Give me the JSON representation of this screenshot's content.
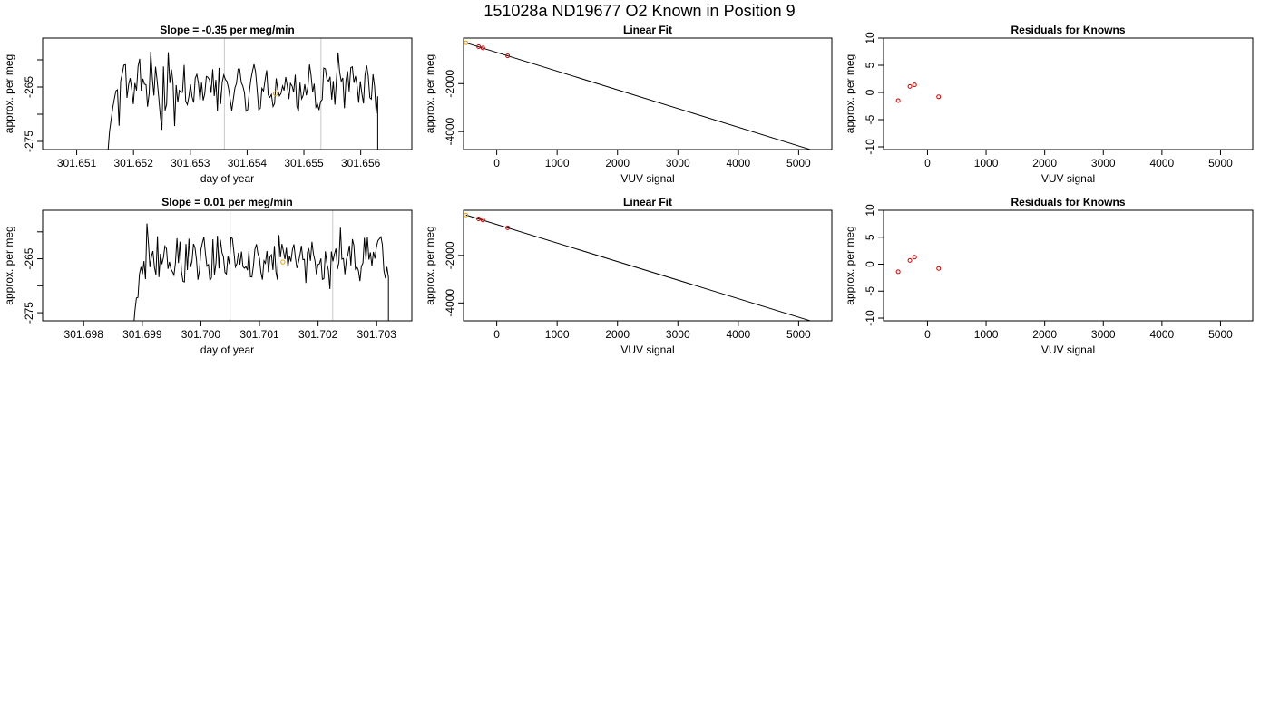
{
  "page_title": "151028a     ND19677   O2 Known in Position  9",
  "chart_data": [
    {
      "id": "p1",
      "type": "line",
      "title": "Slope =  -0.35  per meg/min",
      "xlabel": "day of year",
      "ylabel": "approx. per meg",
      "xlim": [
        301.6504,
        301.6569
      ],
      "ylim": [
        -276.5,
        -256
      ],
      "xticks": [
        301.651,
        301.652,
        301.653,
        301.654,
        301.655,
        301.656
      ],
      "xtick_labels": [
        "301.651",
        "301.652",
        "301.653",
        "301.654",
        "301.655",
        "301.656"
      ],
      "yticks": [
        -275,
        -270,
        -265,
        -260
      ],
      "ytick_labels": [
        "-275",
        "",
        "-265",
        ""
      ],
      "vlines": [
        301.6536,
        301.6553
      ],
      "mean_marker": {
        "x": 301.6545,
        "y": -266.2
      },
      "series": [
        {
          "trace": true,
          "x_start": 301.65155,
          "x_end": 301.6563,
          "y_start": -275.5,
          "base": -265,
          "amp": 3.2,
          "y_end_drop": -277
        }
      ]
    },
    {
      "id": "p2",
      "type": "scatter",
      "title": "Linear Fit",
      "xlabel": "VUV signal",
      "ylabel": "approx. per meg",
      "xlim": [
        -550,
        5550
      ],
      "ylim": [
        -4750,
        -100
      ],
      "xticks": [
        0,
        1000,
        2000,
        3000,
        4000,
        5000
      ],
      "xtick_labels": [
        "0",
        "1000",
        "2000",
        "3000",
        "4000",
        "5000"
      ],
      "yticks": [
        -4000,
        -2000
      ],
      "ytick_labels": [
        "-4000",
        "-2000"
      ],
      "fit_line": {
        "x": [
          -510,
          5270
        ],
        "y": [
          -300,
          -4810
        ]
      },
      "points": [
        {
          "x": -510,
          "y": -300,
          "color": "#e69f00"
        },
        {
          "x": -300,
          "y": -460,
          "color": "#d00000"
        },
        {
          "x": -230,
          "y": -510,
          "color": "#d00000"
        },
        {
          "x": 180,
          "y": -840,
          "color": "#d00000"
        }
      ]
    },
    {
      "id": "p3",
      "type": "scatter",
      "title": "Residuals for Knowns",
      "xlabel": "VUV signal",
      "ylabel": "approx. per meg",
      "xlim": [
        -750,
        5550
      ],
      "ylim": [
        -10.5,
        10
      ],
      "xticks": [
        0,
        1000,
        2000,
        3000,
        4000,
        5000
      ],
      "xtick_labels": [
        "0",
        "1000",
        "2000",
        "3000",
        "4000",
        "5000"
      ],
      "yticks": [
        -10,
        -5,
        0,
        5,
        10
      ],
      "ytick_labels": [
        "-10",
        "-5",
        "0",
        "5",
        "10"
      ],
      "points": [
        {
          "x": -500,
          "y": -1.5,
          "color": "#d00000"
        },
        {
          "x": -300,
          "y": 1.1,
          "color": "#d00000"
        },
        {
          "x": -220,
          "y": 1.4,
          "color": "#d00000"
        },
        {
          "x": 190,
          "y": -0.8,
          "color": "#d00000"
        }
      ]
    },
    {
      "id": "p4",
      "type": "line",
      "title": "Slope =  0.01  per meg/min",
      "xlabel": "day of year",
      "ylabel": "approx. per meg",
      "xlim": [
        301.6973,
        301.7036
      ],
      "ylim": [
        -276.5,
        -256
      ],
      "xticks": [
        301.698,
        301.699,
        301.7,
        301.701,
        301.702,
        301.703
      ],
      "xtick_labels": [
        "301.698",
        "301.699",
        "301.700",
        "301.701",
        "301.702",
        "301.703"
      ],
      "yticks": [
        -275,
        -270,
        -265,
        -260
      ],
      "ytick_labels": [
        "-275",
        "",
        "-265",
        ""
      ],
      "vlines": [
        301.7005,
        301.70225
      ],
      "mean_marker": {
        "x": 301.7014,
        "y": -265.6
      },
      "series": [
        {
          "trace": true,
          "x_start": 301.69885,
          "x_end": 301.7032,
          "y_start": -277,
          "base": -265,
          "amp": 3.2,
          "y_end_drop": -277
        }
      ]
    },
    {
      "id": "p5",
      "type": "scatter",
      "title": "Linear Fit",
      "xlabel": "VUV signal",
      "ylabel": "approx. per meg",
      "xlim": [
        -550,
        5550
      ],
      "ylim": [
        -4750,
        -100
      ],
      "xticks": [
        0,
        1000,
        2000,
        3000,
        4000,
        5000
      ],
      "xtick_labels": [
        "0",
        "1000",
        "2000",
        "3000",
        "4000",
        "5000"
      ],
      "yticks": [
        -4000,
        -2000
      ],
      "ytick_labels": [
        "-4000",
        "-2000"
      ],
      "fit_line": {
        "x": [
          -510,
          5270
        ],
        "y": [
          -300,
          -4810
        ]
      },
      "points": [
        {
          "x": -510,
          "y": -300,
          "color": "#e69f00"
        },
        {
          "x": -300,
          "y": -460,
          "color": "#d00000"
        },
        {
          "x": -230,
          "y": -510,
          "color": "#d00000"
        },
        {
          "x": 180,
          "y": -840,
          "color": "#d00000"
        }
      ]
    },
    {
      "id": "p6",
      "type": "scatter",
      "title": "Residuals for Knowns",
      "xlabel": "VUV signal",
      "ylabel": "approx. per meg",
      "xlim": [
        -750,
        5550
      ],
      "ylim": [
        -10.5,
        10
      ],
      "xticks": [
        0,
        1000,
        2000,
        3000,
        4000,
        5000
      ],
      "xtick_labels": [
        "0",
        "1000",
        "2000",
        "3000",
        "4000",
        "5000"
      ],
      "yticks": [
        -10,
        -5,
        0,
        5,
        10
      ],
      "ytick_labels": [
        "-10",
        "-5",
        "0",
        "5",
        "10"
      ],
      "points": [
        {
          "x": -500,
          "y": -1.4,
          "color": "#d00000"
        },
        {
          "x": -300,
          "y": 0.7,
          "color": "#d00000"
        },
        {
          "x": -220,
          "y": 1.3,
          "color": "#d00000"
        },
        {
          "x": 190,
          "y": -0.8,
          "color": "#d00000"
        }
      ]
    }
  ]
}
